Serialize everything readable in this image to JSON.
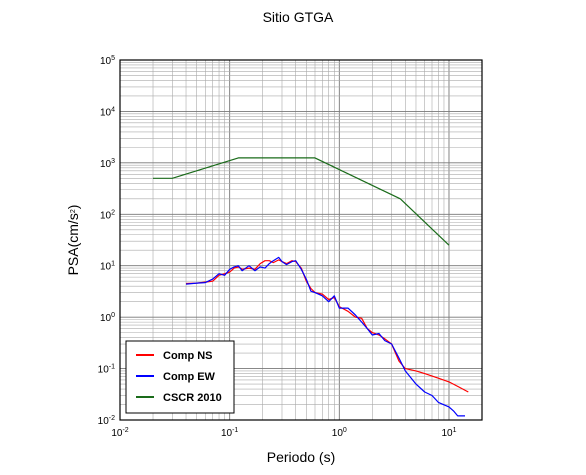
{
  "chart_data": {
    "type": "line",
    "title": "Sitio GTGA",
    "xlabel": "Periodo (s)",
    "ylabel": {
      "base": "PSA(cm/s",
      "sup": "2",
      "close": ")"
    },
    "x_scale": "log",
    "y_scale": "log",
    "xlim": [
      0.01,
      20
    ],
    "ylim": [
      0.01,
      100000
    ],
    "x_ticks": [
      {
        "value": 0.01,
        "base": "10",
        "exp": "-2"
      },
      {
        "value": 0.1,
        "base": "10",
        "exp": "-1"
      },
      {
        "value": 1,
        "base": "10",
        "exp": "0"
      },
      {
        "value": 10,
        "base": "10",
        "exp": "1"
      }
    ],
    "y_ticks": [
      {
        "value": 0.01,
        "base": "10",
        "exp": "-2"
      },
      {
        "value": 0.1,
        "base": "10",
        "exp": "-1"
      },
      {
        "value": 1,
        "base": "10",
        "exp": "0"
      },
      {
        "value": 10,
        "base": "10",
        "exp": "1"
      },
      {
        "value": 100,
        "base": "10",
        "exp": "2"
      },
      {
        "value": 1000,
        "base": "10",
        "exp": "3"
      },
      {
        "value": 10000,
        "base": "10",
        "exp": "4"
      },
      {
        "value": 100000,
        "base": "10",
        "exp": "5"
      }
    ],
    "grid": true,
    "legend_position": "bottom-left",
    "series": [
      {
        "name": "Comp NS",
        "color": "#ff0000",
        "points": [
          [
            0.04,
            4.5
          ],
          [
            0.05,
            4.6
          ],
          [
            0.06,
            4.8
          ],
          [
            0.07,
            5.0
          ],
          [
            0.08,
            6.5
          ],
          [
            0.09,
            7.0
          ],
          [
            0.1,
            7.5
          ],
          [
            0.11,
            9.0
          ],
          [
            0.12,
            9.5
          ],
          [
            0.13,
            8.5
          ],
          [
            0.15,
            9.0
          ],
          [
            0.17,
            8.5
          ],
          [
            0.19,
            11.0
          ],
          [
            0.21,
            12.5
          ],
          [
            0.23,
            12.5
          ],
          [
            0.25,
            11.5
          ],
          [
            0.28,
            13.0
          ],
          [
            0.3,
            12.0
          ],
          [
            0.33,
            11.0
          ],
          [
            0.37,
            12.5
          ],
          [
            0.4,
            12.0
          ],
          [
            0.45,
            9.0
          ],
          [
            0.5,
            5.0
          ],
          [
            0.55,
            3.6
          ],
          [
            0.6,
            3.0
          ],
          [
            0.7,
            2.8
          ],
          [
            0.8,
            2.2
          ],
          [
            0.9,
            2.4
          ],
          [
            1.0,
            1.6
          ],
          [
            1.2,
            1.3
          ],
          [
            1.4,
            1.0
          ],
          [
            1.6,
            0.95
          ],
          [
            1.8,
            0.6
          ],
          [
            2.0,
            0.5
          ],
          [
            2.3,
            0.45
          ],
          [
            2.6,
            0.38
          ],
          [
            3.0,
            0.3
          ],
          [
            3.5,
            0.14
          ],
          [
            4.0,
            0.1
          ],
          [
            5.0,
            0.09
          ],
          [
            6.0,
            0.08
          ],
          [
            8.0,
            0.065
          ],
          [
            10.0,
            0.055
          ],
          [
            12.0,
            0.045
          ],
          [
            15.0,
            0.035
          ]
        ]
      },
      {
        "name": "Comp EW",
        "color": "#0000ff",
        "points": [
          [
            0.04,
            4.4
          ],
          [
            0.05,
            4.6
          ],
          [
            0.06,
            4.7
          ],
          [
            0.07,
            5.5
          ],
          [
            0.08,
            7.0
          ],
          [
            0.09,
            6.5
          ],
          [
            0.1,
            8.5
          ],
          [
            0.11,
            9.5
          ],
          [
            0.12,
            10.0
          ],
          [
            0.13,
            8.0
          ],
          [
            0.15,
            10.0
          ],
          [
            0.17,
            8.0
          ],
          [
            0.19,
            9.5
          ],
          [
            0.21,
            9.0
          ],
          [
            0.23,
            11.0
          ],
          [
            0.25,
            12.5
          ],
          [
            0.28,
            14.5
          ],
          [
            0.3,
            12.0
          ],
          [
            0.33,
            10.5
          ],
          [
            0.37,
            12.0
          ],
          [
            0.4,
            12.5
          ],
          [
            0.45,
            8.5
          ],
          [
            0.5,
            5.5
          ],
          [
            0.55,
            3.2
          ],
          [
            0.6,
            3.0
          ],
          [
            0.7,
            2.6
          ],
          [
            0.8,
            2.0
          ],
          [
            0.9,
            2.6
          ],
          [
            1.0,
            1.5
          ],
          [
            1.2,
            1.5
          ],
          [
            1.4,
            1.1
          ],
          [
            1.6,
            0.8
          ],
          [
            1.8,
            0.6
          ],
          [
            2.0,
            0.45
          ],
          [
            2.3,
            0.48
          ],
          [
            2.6,
            0.35
          ],
          [
            3.0,
            0.3
          ],
          [
            3.5,
            0.16
          ],
          [
            4.0,
            0.09
          ],
          [
            5.0,
            0.05
          ],
          [
            6.0,
            0.035
          ],
          [
            7.0,
            0.03
          ],
          [
            8.0,
            0.022
          ],
          [
            10.0,
            0.018
          ],
          [
            11.0,
            0.015
          ],
          [
            12.0,
            0.012
          ],
          [
            14.0,
            0.012
          ]
        ]
      },
      {
        "name": "CSCR 2010",
        "color": "#1a6b1a",
        "points": [
          [
            0.02,
            500
          ],
          [
            0.03,
            500
          ],
          [
            0.12,
            1250
          ],
          [
            0.6,
            1250
          ],
          [
            3.6,
            200
          ],
          [
            10.0,
            25
          ]
        ]
      }
    ]
  }
}
